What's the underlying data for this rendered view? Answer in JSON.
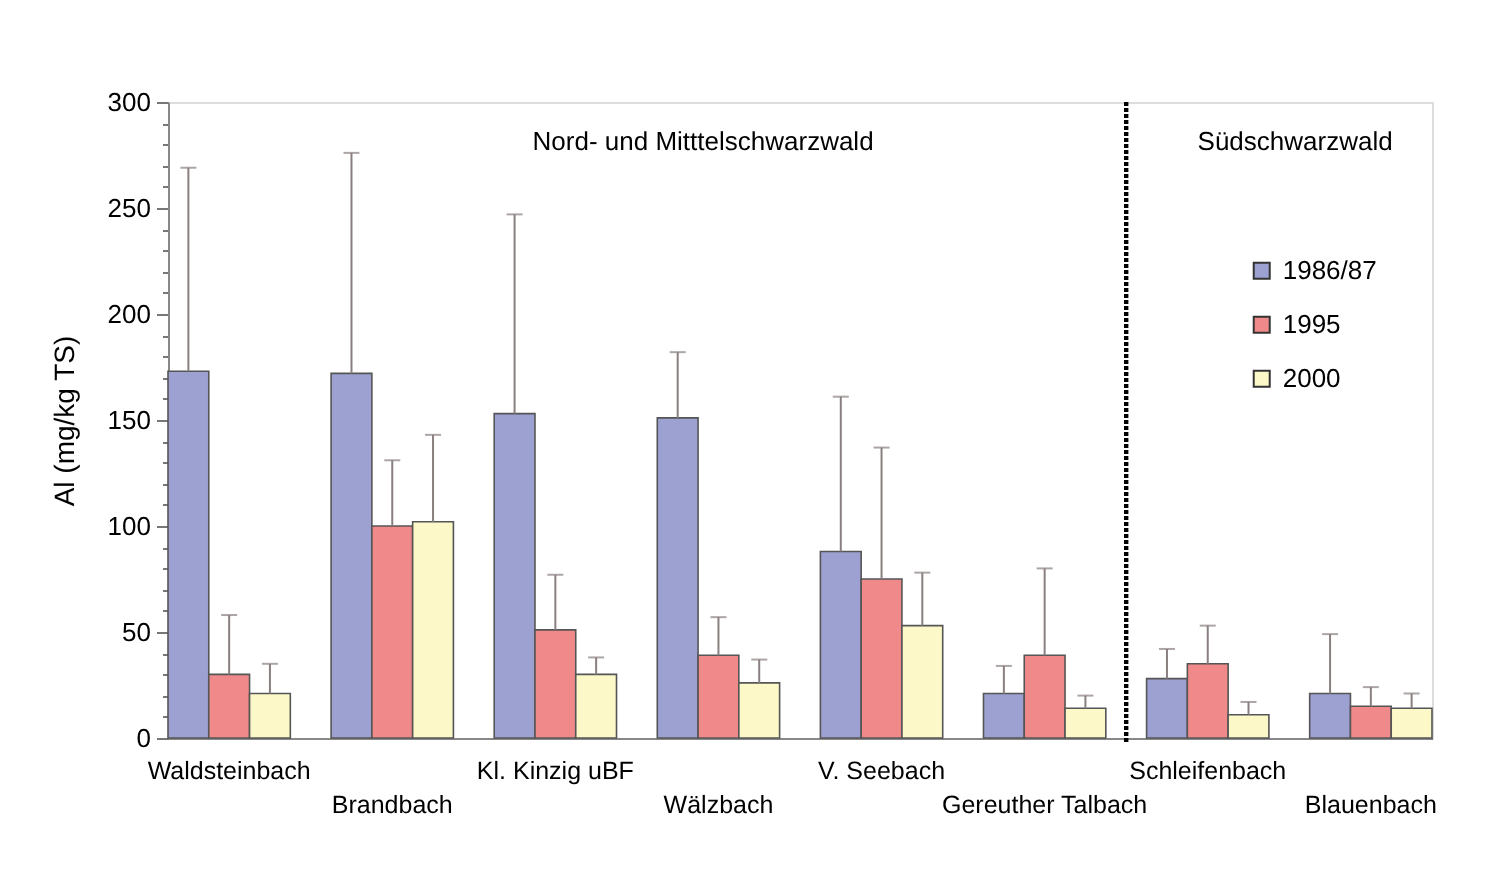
{
  "chart_data": {
    "type": "bar",
    "ylabel": "Al (mg/kg TS)",
    "categories": [
      "Waldsteinbach",
      "Brandbach",
      "Kl. Kinzig uBF",
      "Wälzbach",
      "V. Seebach",
      "Gereuther Talbach",
      "Schleifenbach",
      "Blauenbach"
    ],
    "series": [
      {
        "name": "1986/87",
        "color": "#9da1d2",
        "values": [
          173,
          172,
          153,
          151,
          88,
          21,
          28,
          21
        ],
        "errors": [
          [
            173,
            269
          ],
          [
            172,
            276
          ],
          [
            153,
            247
          ],
          [
            151,
            182
          ],
          [
            88,
            161
          ],
          [
            21,
            34
          ],
          [
            28,
            42
          ],
          [
            21,
            49
          ]
        ]
      },
      {
        "name": "1995",
        "color": "#f08a8a",
        "values": [
          30,
          100,
          51,
          39,
          75,
          39,
          35,
          15
        ],
        "errors": [
          [
            30,
            58
          ],
          [
            100,
            131
          ],
          [
            51,
            77
          ],
          [
            39,
            57
          ],
          [
            75,
            137
          ],
          [
            39,
            80
          ],
          [
            35,
            53
          ],
          [
            15,
            24
          ]
        ]
      },
      {
        "name": "2000",
        "color": "#fcf8c8",
        "values": [
          21,
          102,
          30,
          26,
          53,
          14,
          11,
          14
        ],
        "errors": [
          [
            21,
            35
          ],
          [
            102,
            143
          ],
          [
            30,
            38
          ],
          [
            26,
            37
          ],
          [
            53,
            78
          ],
          [
            14,
            20
          ],
          [
            11,
            17
          ],
          [
            14,
            21
          ]
        ]
      }
    ],
    "ylim": [
      0,
      300
    ],
    "yticks": [
      0,
      {
        "value": 10,
        "label": null
      },
      {
        "value": 20,
        "label": null
      },
      {
        "value": 30,
        "label": null
      },
      {
        "value": 40,
        "label": null
      },
      50,
      {
        "value": 60,
        "label": null
      },
      {
        "value": 70,
        "label": null
      },
      {
        "value": 80,
        "label": null
      },
      {
        "value": 90,
        "label": null
      },
      100,
      {
        "value": 110,
        "label": null
      },
      {
        "value": 120,
        "label": null
      },
      {
        "value": 130,
        "label": null
      },
      {
        "value": 140,
        "label": null
      },
      150,
      {
        "value": 160,
        "label": null
      },
      {
        "value": 170,
        "label": null
      },
      {
        "value": 180,
        "label": null
      },
      {
        "value": 190,
        "label": null
      },
      200,
      {
        "value": 210,
        "label": null
      },
      {
        "value": 220,
        "label": null
      },
      {
        "value": 230,
        "label": null
      },
      {
        "value": 240,
        "label": null
      },
      250,
      {
        "value": 260,
        "label": null
      },
      {
        "value": 270,
        "label": null
      },
      {
        "value": 280,
        "label": null
      },
      {
        "value": 290,
        "label": null
      },
      300
    ],
    "annotations": [
      "Nord- und Mitttelschwarzwald",
      "Südschwarzwald"
    ],
    "legend": "top right"
  }
}
